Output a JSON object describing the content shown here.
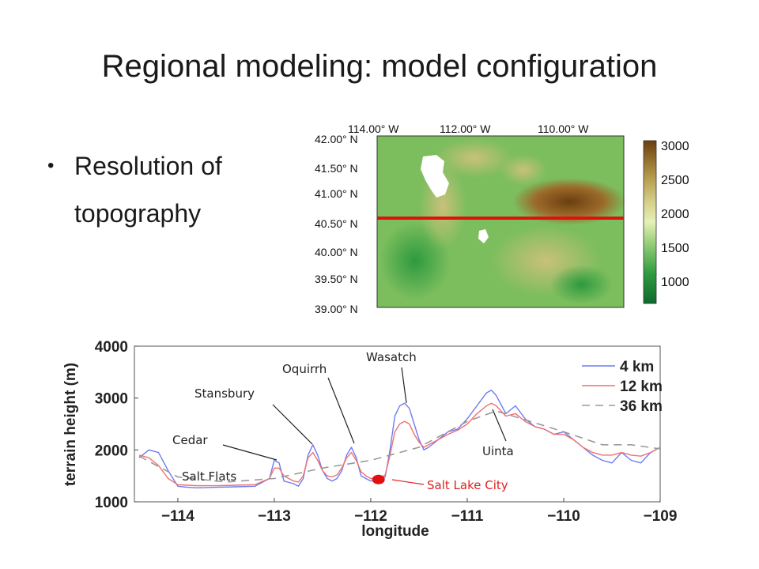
{
  "slide": {
    "title": "Regional modeling: model configuration",
    "bullet": "Resolution of topography"
  },
  "map": {
    "lon_labels": [
      "114.00° W",
      "112.00° W",
      "110.00° W"
    ],
    "lat_labels": [
      "42.00° N",
      "41.50° N",
      "41.00° N",
      "40.50° N",
      "40.00° N",
      "39.50° N",
      "39.00° N"
    ],
    "colorbar_labels": [
      "3000",
      "2500",
      "2000",
      "1500",
      "1000"
    ],
    "transect_color": "#e01010"
  },
  "chart_data": {
    "type": "line",
    "xlabel": "longitude",
    "ylabel": "terrain height (m)",
    "xlim": [
      -114.45,
      -109.0
    ],
    "ylim": [
      1000,
      4000
    ],
    "xticks": [
      -114,
      -113,
      -112,
      -111,
      -110,
      -109
    ],
    "xtick_labels": [
      "−114",
      "−113",
      "−112",
      "−111",
      "−110",
      "−109"
    ],
    "yticks": [
      1000,
      2000,
      3000,
      4000
    ],
    "ytick_labels": [
      "1000",
      "2000",
      "3000",
      "4000"
    ],
    "legend_position": "top-right",
    "series": [
      {
        "name": "4 km",
        "color": "#6f7cf0",
        "dash": "",
        "x": [
          -114.4,
          -114.3,
          -114.2,
          -114.1,
          -114.0,
          -113.9,
          -113.8,
          -113.6,
          -113.4,
          -113.2,
          -113.05,
          -113.0,
          -112.95,
          -112.9,
          -112.8,
          -112.75,
          -112.7,
          -112.65,
          -112.6,
          -112.55,
          -112.5,
          -112.45,
          -112.4,
          -112.35,
          -112.3,
          -112.25,
          -112.2,
          -112.15,
          -112.1,
          -112.05,
          -112.0,
          -111.95,
          -111.9,
          -111.85,
          -111.8,
          -111.75,
          -111.7,
          -111.65,
          -111.6,
          -111.55,
          -111.5,
          -111.45,
          -111.4,
          -111.3,
          -111.2,
          -111.1,
          -111.0,
          -110.9,
          -110.8,
          -110.75,
          -110.7,
          -110.6,
          -110.5,
          -110.4,
          -110.3,
          -110.2,
          -110.1,
          -110.0,
          -109.9,
          -109.8,
          -109.7,
          -109.6,
          -109.5,
          -109.4,
          -109.3,
          -109.2,
          -109.1,
          -109.0
        ],
        "y": [
          1850,
          2000,
          1950,
          1600,
          1300,
          1280,
          1270,
          1280,
          1290,
          1300,
          1450,
          1800,
          1750,
          1400,
          1350,
          1300,
          1450,
          1900,
          2100,
          1900,
          1600,
          1450,
          1400,
          1450,
          1600,
          1900,
          2050,
          1850,
          1500,
          1450,
          1400,
          1420,
          1420,
          1480,
          2000,
          2650,
          2850,
          2900,
          2800,
          2500,
          2200,
          2000,
          2050,
          2200,
          2350,
          2400,
          2600,
          2850,
          3100,
          3150,
          3050,
          2700,
          2850,
          2600,
          2450,
          2400,
          2300,
          2350,
          2200,
          2050,
          1900,
          1800,
          1750,
          1950,
          1800,
          1750,
          1950,
          2050
        ]
      },
      {
        "name": "12 km",
        "color": "#f07070",
        "dash": "",
        "x": [
          -114.4,
          -114.3,
          -114.2,
          -114.1,
          -114.0,
          -113.9,
          -113.8,
          -113.6,
          -113.4,
          -113.2,
          -113.05,
          -113.0,
          -112.95,
          -112.9,
          -112.8,
          -112.75,
          -112.7,
          -112.65,
          -112.6,
          -112.55,
          -112.5,
          -112.45,
          -112.4,
          -112.35,
          -112.3,
          -112.25,
          -112.2,
          -112.15,
          -112.1,
          -112.05,
          -112.0,
          -111.95,
          -111.9,
          -111.85,
          -111.8,
          -111.75,
          -111.7,
          -111.65,
          -111.6,
          -111.55,
          -111.5,
          -111.45,
          -111.4,
          -111.3,
          -111.2,
          -111.1,
          -111.0,
          -110.9,
          -110.8,
          -110.75,
          -110.7,
          -110.6,
          -110.5,
          -110.4,
          -110.3,
          -110.2,
          -110.1,
          -110.0,
          -109.9,
          -109.8,
          -109.7,
          -109.6,
          -109.5,
          -109.4,
          -109.3,
          -109.2,
          -109.1,
          -109.0
        ],
        "y": [
          1900,
          1850,
          1700,
          1450,
          1330,
          1320,
          1310,
          1310,
          1320,
          1330,
          1450,
          1650,
          1650,
          1500,
          1400,
          1380,
          1500,
          1850,
          1950,
          1800,
          1600,
          1500,
          1480,
          1520,
          1650,
          1850,
          1950,
          1800,
          1580,
          1500,
          1450,
          1450,
          1460,
          1520,
          1900,
          2350,
          2500,
          2550,
          2500,
          2300,
          2150,
          2050,
          2100,
          2200,
          2300,
          2380,
          2500,
          2700,
          2850,
          2900,
          2850,
          2650,
          2700,
          2550,
          2450,
          2400,
          2300,
          2300,
          2200,
          2050,
          1950,
          1900,
          1900,
          1950,
          1900,
          1880,
          1950,
          2050
        ]
      },
      {
        "name": "36 km",
        "color": "#9a9a9a",
        "dash": "10,7",
        "x": [
          -114.4,
          -114.0,
          -113.5,
          -113.0,
          -112.5,
          -112.0,
          -111.5,
          -111.0,
          -110.7,
          -110.4,
          -110.0,
          -109.6,
          -109.3,
          -109.0
        ],
        "y": [
          1880,
          1480,
          1380,
          1450,
          1650,
          1800,
          2050,
          2550,
          2750,
          2580,
          2350,
          2100,
          2100,
          2020
        ]
      }
    ],
    "annotations": [
      {
        "text": "Wasatch",
        "color": "#222222"
      },
      {
        "text": "Oquirrh",
        "color": "#222222"
      },
      {
        "text": "Stansbury",
        "color": "#222222"
      },
      {
        "text": "Cedar",
        "color": "#222222"
      },
      {
        "text": "Salt Flats",
        "color": "#222222"
      },
      {
        "text": "Uinta",
        "color": "#222222"
      },
      {
        "text": "Salt Lake City",
        "color": "#e02020"
      }
    ],
    "marker": {
      "label": "Salt Lake City",
      "x": -111.92,
      "y": 1430,
      "color": "#e01010"
    }
  }
}
